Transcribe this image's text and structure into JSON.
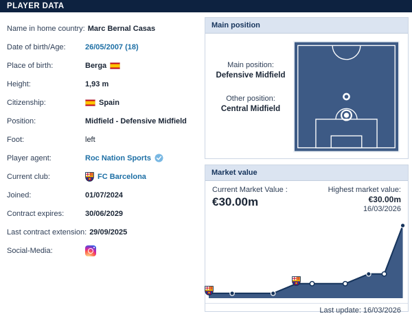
{
  "header": {
    "title": "PLAYER DATA"
  },
  "player_info": {
    "rows": [
      {
        "label": "Name in home country:",
        "value": "Marc Bernal Casas",
        "style": "bold"
      },
      {
        "label": "Date of birth/Age:",
        "value": "26/05/2007 (18)",
        "style": "link"
      },
      {
        "label": "Place of birth:",
        "value": "Berga",
        "style": "bold",
        "icon_after": "spain-flag"
      },
      {
        "label": "Height:",
        "value": "1,93 m",
        "style": "bold"
      },
      {
        "label": "Citizenship:",
        "value": "Spain",
        "style": "bold",
        "icon_before": "spain-flag"
      },
      {
        "label": "Position:",
        "value": "Midfield - Defensive Midfield",
        "style": "bold"
      },
      {
        "label": "Foot:",
        "value": "left",
        "style": "text"
      },
      {
        "label": "Player agent:",
        "value": "Roc Nation Sports",
        "style": "link",
        "icon_after": "verified"
      },
      {
        "label": "Current club:",
        "value": "FC Barcelona",
        "style": "link",
        "icon_before": "barca-crest"
      },
      {
        "label": "Joined:",
        "value": "01/07/2024",
        "style": "bold"
      },
      {
        "label": "Contract expires:",
        "value": "30/06/2029",
        "style": "bold"
      },
      {
        "label": "Last contract extension:",
        "value": "29/09/2025",
        "style": "bold"
      },
      {
        "label": "Social-Media:",
        "value": "",
        "style": "icon",
        "icon_before": "instagram"
      }
    ]
  },
  "main_position_panel": {
    "title": "Main position",
    "main_position_label": "Main position:",
    "main_position": "Defensive Midfield",
    "other_position_label": "Other position:",
    "other_position": "Central Midfield"
  },
  "market_value_panel": {
    "title": "Market value",
    "current_label": "Current Market Value :",
    "current_value": "€30.00m",
    "highest_label": "Highest market value:",
    "highest_value": "€30.00m",
    "highest_date": "16/03/2026",
    "last_update": "Last update: 16/03/2026"
  },
  "chart_data": {
    "type": "area",
    "title": "Market value history",
    "unit": "€m",
    "ylim": [
      0,
      30
    ],
    "x_percent": [
      0,
      12,
      33,
      45,
      53,
      70,
      82,
      90,
      99.5
    ],
    "values": [
      2,
      2,
      2,
      6,
      6,
      6,
      10,
      10,
      30
    ],
    "markers": [
      "club-badge",
      "dot",
      "dot",
      "club-badge",
      "open-dot",
      "open-dot",
      "dot",
      "open-dot",
      "dot"
    ],
    "legend": "none",
    "grid": false,
    "peak_label": "€30.00m at 16/03/2026"
  },
  "colors": {
    "topbar_bg": "#0d2240",
    "panel_header_bg": "#dbe4f1",
    "panel_header_text": "#16345c",
    "link_blue": "#1d6fa5",
    "pitch_fill": "#3d5a85",
    "chart_fill": "#3d5a85",
    "chart_line": "#16345c",
    "verified_blue": "#79b8e3",
    "flag_red": "#c60b1e",
    "flag_yellow": "#ffc400"
  },
  "icons": {
    "spain-flag": "spain-flag-icon",
    "barca-crest": "fc-barcelona-crest-icon",
    "verified": "verified-check-icon",
    "instagram": "instagram-icon",
    "club-badge": "fc-barcelona-crest-icon"
  }
}
